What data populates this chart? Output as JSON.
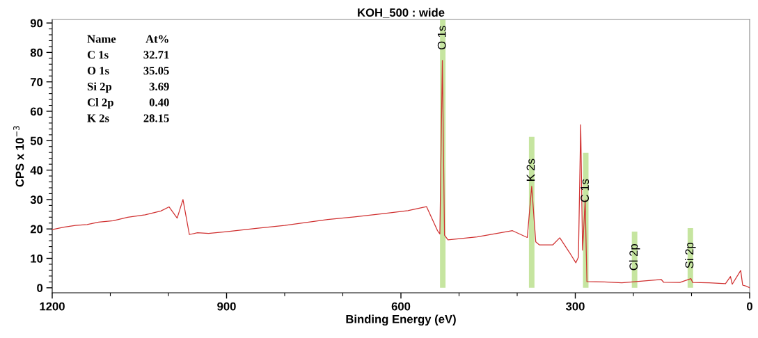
{
  "chart_data": {
    "type": "line",
    "title": "KOH_500 : wide",
    "xlabel": "Binding Energy (eV)",
    "ylabel": "CPS x 10$^{−3}$",
    "xlim": [
      1200,
      0
    ],
    "ylim": [
      -1.7,
      91.2
    ],
    "xticks": [
      1200,
      {
        "value": 1100,
        "label": null
      },
      {
        "value": 1000,
        "label": null
      },
      900,
      {
        "value": 800,
        "label": null
      },
      {
        "value": 700,
        "label": null
      },
      600,
      {
        "value": 500,
        "label": null
      },
      {
        "value": 400,
        "label": null
      },
      300,
      {
        "value": 200,
        "label": null
      },
      {
        "value": 100,
        "label": null
      },
      0
    ],
    "yticks": [
      0,
      {
        "value": 2,
        "label": null
      },
      {
        "value": 4,
        "label": null
      },
      {
        "value": 6,
        "label": null
      },
      {
        "value": 8,
        "label": null
      },
      10,
      {
        "value": 12,
        "label": null
      },
      {
        "value": 14,
        "label": null
      },
      {
        "value": 16,
        "label": null
      },
      {
        "value": 18,
        "label": null
      },
      20,
      {
        "value": 22,
        "label": null
      },
      {
        "value": 24,
        "label": null
      },
      {
        "value": 26,
        "label": null
      },
      {
        "value": 28,
        "label": null
      },
      30,
      {
        "value": 32,
        "label": null
      },
      {
        "value": 34,
        "label": null
      },
      {
        "value": 36,
        "label": null
      },
      {
        "value": 38,
        "label": null
      },
      40,
      {
        "value": 42,
        "label": null
      },
      {
        "value": 44,
        "label": null
      },
      {
        "value": 46,
        "label": null
      },
      {
        "value": 48,
        "label": null
      },
      50,
      {
        "value": 52,
        "label": null
      },
      {
        "value": 54,
        "label": null
      },
      {
        "value": 56,
        "label": null
      },
      {
        "value": 58,
        "label": null
      },
      60,
      {
        "value": 62,
        "label": null
      },
      {
        "value": 64,
        "label": null
      },
      {
        "value": 66,
        "label": null
      },
      {
        "value": 68,
        "label": null
      },
      70,
      {
        "value": 72,
        "label": null
      },
      {
        "value": 74,
        "label": null
      },
      {
        "value": 76,
        "label": null
      },
      {
        "value": 78,
        "label": null
      },
      80,
      {
        "value": 82,
        "label": null
      },
      {
        "value": 84,
        "label": null
      },
      {
        "value": 86,
        "label": null
      },
      {
        "value": 88,
        "label": null
      },
      90
    ],
    "grid": false,
    "legend": false,
    "series": [
      {
        "type": "bar",
        "color": "#c6e5a0",
        "x": [
          528,
          375,
          282,
          198,
          102
        ],
        "values": [
          91.2,
          51.3,
          45.9,
          19.1,
          20.3
        ]
      },
      {
        "color": "#d03030",
        "x": [
          1200,
          1180,
          1160,
          1140,
          1120,
          1095,
          1070,
          1040,
          1013,
          999,
          985,
          975,
          964,
          950,
          931,
          900,
          849,
          800,
          726,
          680,
          630,
          588,
          556,
          537,
          533,
          528.7,
          525,
          519,
          469,
          408,
          382.6,
          375,
          368,
          362,
          338.6,
          326.7,
          310,
          299,
          294.6,
          290.7,
          287.5,
          283,
          280,
          250,
          220,
          152,
          148,
          120,
          101,
          98,
          70,
          41.6,
          33,
          30,
          15.4,
          12,
          5,
          0
        ],
        "values": [
          19.8,
          20.6,
          21.2,
          21.5,
          22.3,
          22.8,
          24.0,
          24.8,
          26.1,
          27.5,
          23.7,
          30.0,
          18.1,
          18.7,
          18.5,
          19.1,
          20.2,
          21.2,
          23.2,
          24.1,
          25.2,
          26.2,
          27.6,
          19.4,
          18.3,
          77.3,
          17.9,
          16.3,
          17.3,
          19.4,
          17.1,
          34.5,
          15.6,
          14.6,
          14.6,
          17.0,
          12.0,
          8.5,
          10.4,
          55.4,
          12.8,
          29.8,
          2.1,
          2.0,
          1.7,
          2.8,
          1.9,
          1.8,
          3.1,
          1.8,
          1.7,
          1.4,
          3.8,
          1.2,
          5.9,
          0.9,
          0.5,
          0
        ]
      }
    ],
    "annotations": [
      "Name\tAt%",
      "C 1s\t32.71",
      "O 1s\t35.05",
      "Si 2p\t3.69",
      "Cl 2p\t0.40",
      "K 2s\t28.15",
      {
        "text": "O 1s",
        "x": 528,
        "y": 85
      },
      {
        "text": "K 2s",
        "x": 375,
        "y": 40
      },
      {
        "text": "C 1s",
        "x": 282,
        "y": 33
      },
      {
        "text": "Cl 2p",
        "x": 198,
        "y": 10.4
      },
      {
        "text": "Si 2p",
        "x": 102,
        "y": 11
      }
    ]
  }
}
